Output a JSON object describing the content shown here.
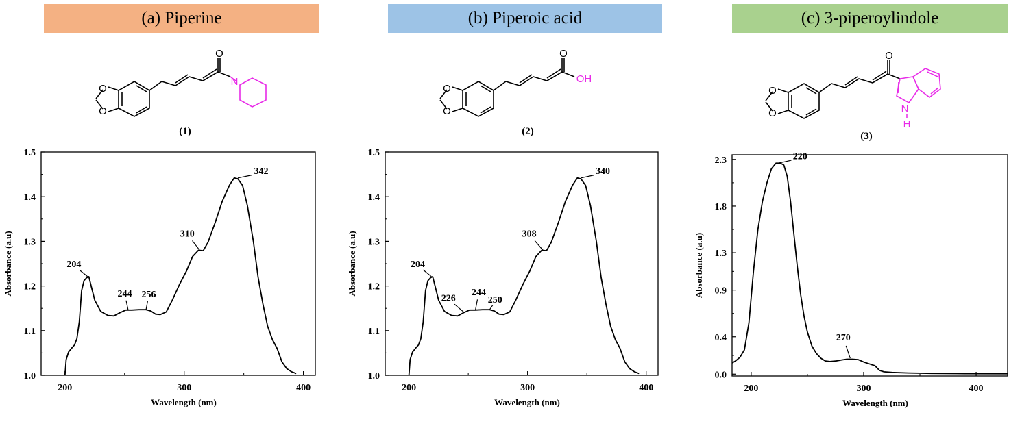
{
  "headers": [
    {
      "label": "(a) Piperine",
      "color": "#f4b183"
    },
    {
      "label": "(b) Piperoic acid",
      "color": "#9dc3e6"
    },
    {
      "label": "(c) 3-piperoylindole",
      "color": "#a9d18e"
    }
  ],
  "compounds": [
    {
      "label": "(1)",
      "atoms": [
        "O",
        "O",
        "O",
        "N"
      ]
    },
    {
      "label": "(2)",
      "atoms": [
        "O",
        "O",
        "O",
        "OH"
      ]
    },
    {
      "label": "(3)",
      "atoms": [
        "O",
        "O",
        "O",
        "N",
        "H"
      ]
    }
  ],
  "colors": {
    "highlight": "#e82be8",
    "curve": "#000000"
  },
  "chart_data": [
    {
      "type": "line",
      "xlabel": "Wavelength (nm)",
      "ylabel": "Absorbance (a.u)",
      "xlim": [
        180,
        410
      ],
      "ylim": [
        1.0,
        1.5
      ],
      "xticks": [
        200,
        300,
        400
      ],
      "yticks": [
        1.0,
        1.1,
        1.2,
        1.3,
        1.4,
        1.5
      ],
      "ytick_labels": [
        "1.0",
        "1.1",
        "1.2",
        "1.3",
        "1.4",
        "1.5"
      ],
      "series": [
        {
          "x": [
            200,
            201,
            203,
            206,
            208,
            210,
            212,
            214,
            216,
            218,
            220,
            222,
            225,
            230,
            236,
            241,
            246,
            251,
            256,
            262,
            268,
            272,
            276,
            280,
            285,
            290,
            296,
            302,
            307,
            312,
            316,
            320,
            326,
            332,
            338,
            342,
            345,
            349,
            353,
            358,
            362,
            366,
            370,
            374,
            378,
            382,
            386,
            390,
            394
          ],
          "y": [
            1.0,
            1.035,
            1.052,
            1.062,
            1.068,
            1.082,
            1.12,
            1.19,
            1.212,
            1.218,
            1.221,
            1.2,
            1.168,
            1.143,
            1.134,
            1.133,
            1.14,
            1.146,
            1.146,
            1.147,
            1.147,
            1.144,
            1.137,
            1.136,
            1.142,
            1.168,
            1.203,
            1.234,
            1.266,
            1.28,
            1.279,
            1.298,
            1.342,
            1.39,
            1.426,
            1.442,
            1.44,
            1.425,
            1.38,
            1.3,
            1.22,
            1.16,
            1.11,
            1.08,
            1.06,
            1.03,
            1.015,
            1.008,
            1.004
          ]
        }
      ],
      "peaks": [
        {
          "label": "204",
          "x": 219,
          "y": 1.221
        },
        {
          "label": "244",
          "x": 253,
          "y": 1.146
        },
        {
          "label": "256",
          "x": 268,
          "y": 1.147
        },
        {
          "label": "310",
          "x": 313,
          "y": 1.28
        },
        {
          "label": "342",
          "x": 345,
          "y": 1.442
        }
      ]
    },
    {
      "type": "line",
      "xlabel": "Wavelength (nm)",
      "ylabel": "Absorbance (a.u)",
      "xlim": [
        180,
        410
      ],
      "ylim": [
        1.0,
        1.5
      ],
      "xticks": [
        200,
        300,
        400
      ],
      "yticks": [
        1.0,
        1.1,
        1.2,
        1.3,
        1.4,
        1.5
      ],
      "ytick_labels": [
        "1.0",
        "1.1",
        "1.2",
        "1.3",
        "1.4",
        "1.5"
      ],
      "series": [
        {
          "x": [
            200,
            201,
            203,
            206,
            208,
            210,
            212,
            214,
            216,
            218,
            220,
            222,
            225,
            230,
            236,
            241,
            246,
            251,
            256,
            262,
            268,
            272,
            276,
            280,
            285,
            290,
            296,
            302,
            307,
            312,
            316,
            320,
            326,
            332,
            338,
            342,
            345,
            349,
            353,
            358,
            362,
            366,
            370,
            374,
            378,
            382,
            386,
            390,
            394
          ],
          "y": [
            1.0,
            1.035,
            1.052,
            1.062,
            1.068,
            1.082,
            1.12,
            1.19,
            1.212,
            1.218,
            1.221,
            1.2,
            1.168,
            1.143,
            1.134,
            1.133,
            1.14,
            1.146,
            1.146,
            1.147,
            1.147,
            1.144,
            1.137,
            1.136,
            1.142,
            1.168,
            1.203,
            1.234,
            1.266,
            1.28,
            1.279,
            1.298,
            1.342,
            1.39,
            1.426,
            1.442,
            1.44,
            1.425,
            1.38,
            1.3,
            1.22,
            1.16,
            1.11,
            1.08,
            1.06,
            1.03,
            1.015,
            1.008,
            1.004
          ]
        }
      ],
      "peaks": [
        {
          "label": "204",
          "x": 219,
          "y": 1.221
        },
        {
          "label": "226",
          "x": 246,
          "y": 1.142
        },
        {
          "label": "244",
          "x": 256,
          "y": 1.146
        },
        {
          "label": "250",
          "x": 268,
          "y": 1.147
        },
        {
          "label": "308",
          "x": 313,
          "y": 1.28
        },
        {
          "label": "340",
          "x": 345,
          "y": 1.442
        }
      ]
    },
    {
      "type": "line",
      "xlabel": "Wavelength (nm)",
      "ylabel": "Absorbance (a.u)",
      "xlim": [
        183,
        428
      ],
      "ylim": [
        -0.02,
        2.35
      ],
      "xticks": [
        200,
        300,
        400
      ],
      "yticks": [
        0.0,
        0.4,
        0.9,
        1.3,
        1.8,
        2.3
      ],
      "ytick_labels": [
        "0.0",
        "0.4",
        "0.9",
        "1.3",
        "1.8",
        "2.3"
      ],
      "series": [
        {
          "x": [
            183,
            186,
            190,
            194,
            198,
            202,
            206,
            210,
            214,
            218,
            222,
            226,
            229,
            232,
            235,
            238,
            241,
            244,
            247,
            250,
            254,
            258,
            262,
            266,
            270,
            275,
            280,
            285,
            290,
            295,
            300,
            305,
            310,
            314,
            318,
            325,
            340,
            360,
            390,
            428
          ],
          "y": [
            0.12,
            0.14,
            0.18,
            0.26,
            0.55,
            1.1,
            1.55,
            1.85,
            2.05,
            2.2,
            2.26,
            2.26,
            2.24,
            2.12,
            1.85,
            1.5,
            1.15,
            0.85,
            0.62,
            0.45,
            0.3,
            0.22,
            0.17,
            0.14,
            0.135,
            0.14,
            0.15,
            0.16,
            0.16,
            0.155,
            0.13,
            0.11,
            0.09,
            0.04,
            0.025,
            0.018,
            0.012,
            0.008,
            0.005,
            0.004
          ]
        }
      ],
      "peaks": [
        {
          "label": "220",
          "x": 224,
          "y": 2.26
        },
        {
          "label": "270",
          "x": 288,
          "y": 0.17
        }
      ]
    }
  ]
}
